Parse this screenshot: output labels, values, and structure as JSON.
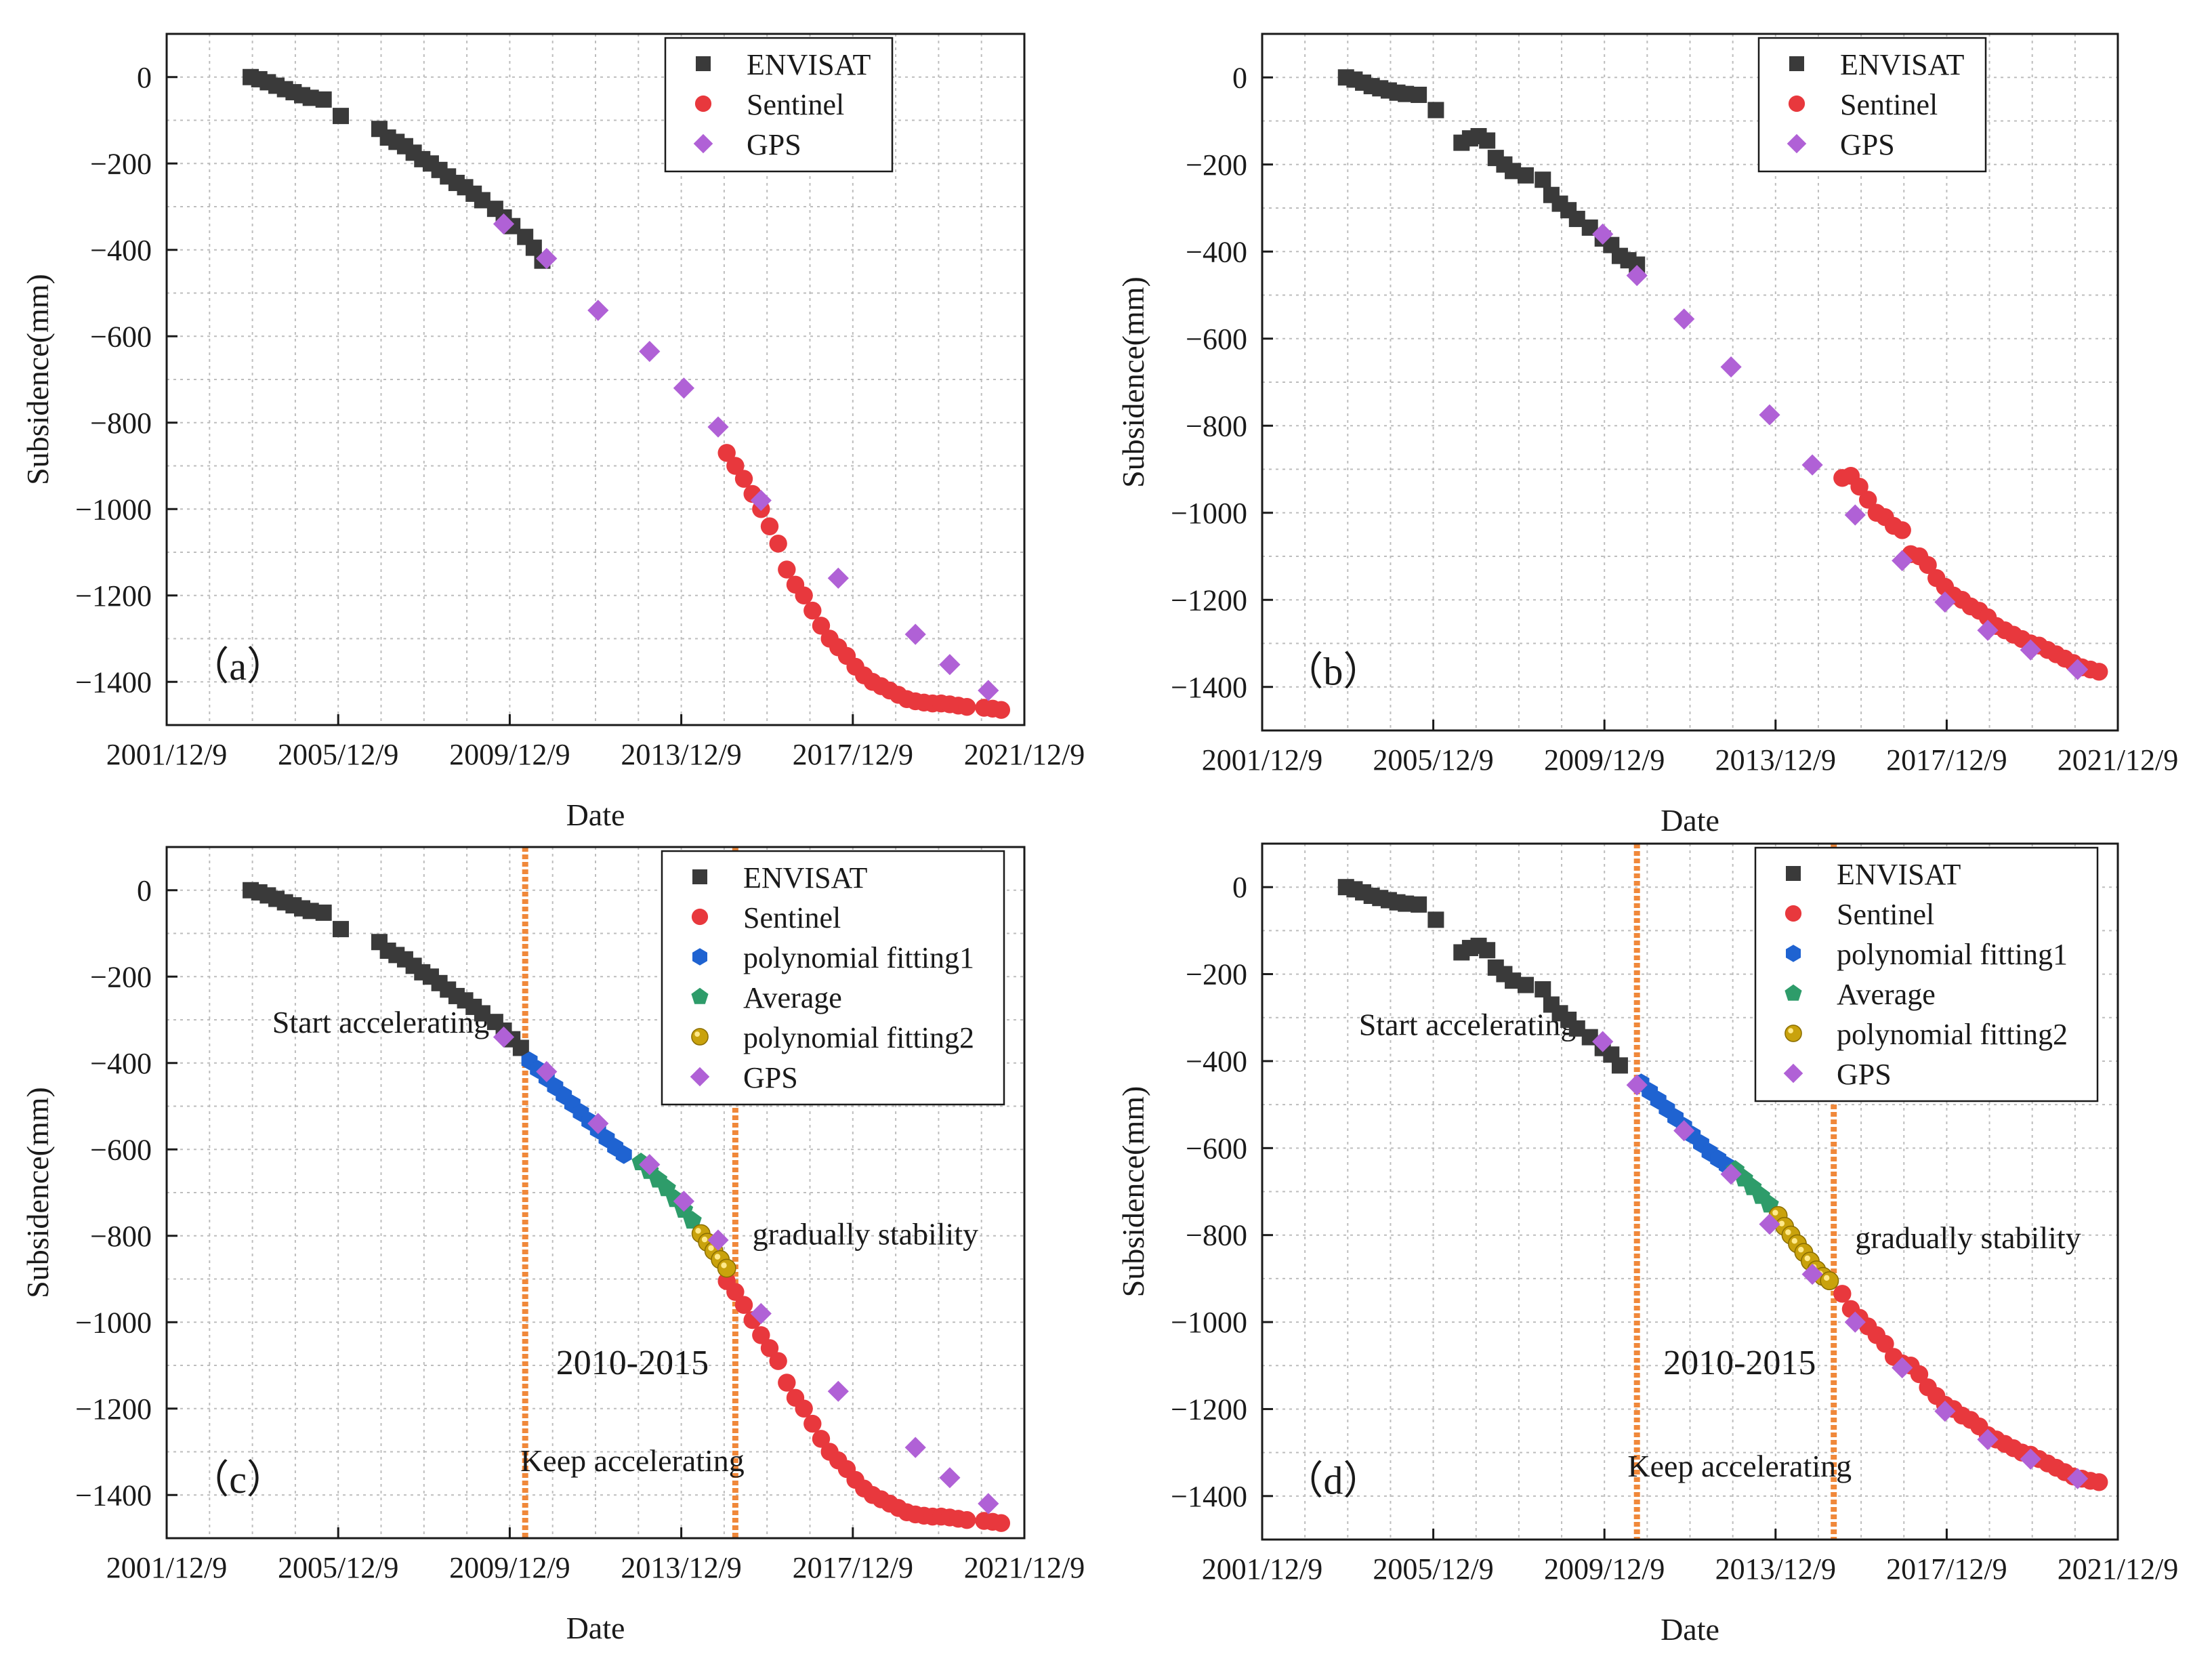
{
  "chart_data": [
    {
      "type": "scatter",
      "panel_label": "（a）",
      "xlabel": "Date",
      "ylabel": "Subsidence(mm)",
      "x_ticks": [
        "2001/12/9",
        "2005/12/9",
        "2009/12/9",
        "2013/12/9",
        "2017/12/9",
        "2021/12/9"
      ],
      "y_ticks": [
        "0",
        "−200",
        "−400",
        "−600",
        "−800",
        "−1000",
        "−1200",
        "−1400"
      ],
      "xlim": [
        2001.94,
        2021.94
      ],
      "ylim": [
        -1500,
        100
      ],
      "legend_position": "top-right",
      "series": [
        {
          "name": "ENVISAT",
          "marker": "square",
          "color": "#3a3a3a",
          "x": [
            2003.9,
            2004.1,
            2004.3,
            2004.5,
            2004.7,
            2004.9,
            2005.1,
            2005.3,
            2005.6,
            2006.0,
            2006.9,
            2007.1,
            2007.3,
            2007.5,
            2007.7,
            2007.9,
            2008.1,
            2008.3,
            2008.5,
            2008.7,
            2008.9,
            2009.1,
            2009.3,
            2009.6,
            2009.8,
            2010.0,
            2010.3,
            2010.5,
            2010.7
          ],
          "y": [
            0,
            -5,
            -12,
            -20,
            -28,
            -35,
            -42,
            -48,
            -52,
            -90,
            -120,
            -140,
            -150,
            -160,
            -175,
            -190,
            -200,
            -215,
            -230,
            -245,
            -255,
            -270,
            -285,
            -305,
            -325,
            -345,
            -370,
            -395,
            -425
          ]
        },
        {
          "name": "Sentinel",
          "marker": "circle",
          "color": "#e8383d",
          "x": [
            2015.0,
            2015.2,
            2015.4,
            2015.6,
            2015.8,
            2016.0,
            2016.2,
            2016.4,
            2016.6,
            2016.8,
            2017.0,
            2017.2,
            2017.4,
            2017.6,
            2017.8,
            2018.0,
            2018.2,
            2018.4,
            2018.6,
            2018.8,
            2019.0,
            2019.2,
            2019.4,
            2019.6,
            2019.8,
            2020.0,
            2020.2,
            2020.4,
            2020.6,
            2021.0,
            2021.2,
            2021.4
          ],
          "y": [
            -870,
            -900,
            -930,
            -965,
            -1000,
            -1040,
            -1080,
            -1140,
            -1175,
            -1200,
            -1235,
            -1270,
            -1300,
            -1320,
            -1340,
            -1365,
            -1385,
            -1400,
            -1410,
            -1420,
            -1430,
            -1440,
            -1445,
            -1448,
            -1450,
            -1450,
            -1452,
            -1455,
            -1458,
            -1460,
            -1462,
            -1465
          ]
        },
        {
          "name": "GPS",
          "marker": "diamond",
          "color": "#b061d6",
          "x": [
            2009.8,
            2010.8,
            2012.0,
            2013.2,
            2014.0,
            2014.8,
            2015.8,
            2017.6,
            2019.4,
            2020.2,
            2021.1
          ],
          "y": [
            -340,
            -420,
            -540,
            -635,
            -720,
            -810,
            -980,
            -1160,
            -1290,
            -1360,
            -1420
          ]
        }
      ],
      "annotations": []
    },
    {
      "type": "scatter",
      "panel_label": "（b）",
      "xlabel": "Date",
      "ylabel": "Subsidence(mm)",
      "x_ticks": [
        "2001/12/9",
        "2005/12/9",
        "2009/12/9",
        "2013/12/9",
        "2017/12/9",
        "2021/12/9"
      ],
      "y_ticks": [
        "0",
        "−200",
        "−400",
        "−600",
        "−800",
        "−1000",
        "−1200",
        "−1400"
      ],
      "xlim": [
        2001.94,
        2021.94
      ],
      "ylim": [
        -1500,
        100
      ],
      "legend_position": "top-right",
      "series": [
        {
          "name": "ENVISAT",
          "marker": "square",
          "color": "#3a3a3a",
          "x": [
            2003.9,
            2004.1,
            2004.3,
            2004.5,
            2004.7,
            2004.9,
            2005.1,
            2005.3,
            2005.6,
            2006.0,
            2006.6,
            2006.8,
            2007.0,
            2007.2,
            2007.4,
            2007.6,
            2007.8,
            2008.1,
            2008.5,
            2008.7,
            2008.9,
            2009.1,
            2009.3,
            2009.6,
            2009.9,
            2010.1,
            2010.3,
            2010.5,
            2010.7
          ],
          "y": [
            0,
            -5,
            -12,
            -20,
            -25,
            -30,
            -35,
            -38,
            -40,
            -75,
            -150,
            -140,
            -135,
            -145,
            -185,
            -200,
            -215,
            -225,
            -235,
            -270,
            -290,
            -305,
            -325,
            -345,
            -370,
            -385,
            -410,
            -420,
            -430
          ]
        },
        {
          "name": "Sentinel",
          "marker": "circle",
          "color": "#e8383d",
          "x": [
            2015.5,
            2015.7,
            2015.9,
            2016.1,
            2016.3,
            2016.5,
            2016.7,
            2016.9,
            2017.1,
            2017.3,
            2017.5,
            2017.7,
            2017.9,
            2018.1,
            2018.3,
            2018.5,
            2018.7,
            2018.9,
            2019.1,
            2019.3,
            2019.5,
            2019.7,
            2019.9,
            2020.1,
            2020.3,
            2020.5,
            2020.7,
            2020.9,
            2021.1,
            2021.3,
            2021.5
          ],
          "y": [
            -920,
            -915,
            -940,
            -970,
            -1000,
            -1010,
            -1030,
            -1040,
            -1095,
            -1100,
            -1120,
            -1150,
            -1170,
            -1190,
            -1200,
            -1215,
            -1225,
            -1240,
            -1260,
            -1270,
            -1280,
            -1290,
            -1300,
            -1305,
            -1315,
            -1325,
            -1335,
            -1345,
            -1355,
            -1360,
            -1365
          ]
        },
        {
          "name": "GPS",
          "marker": "diamond",
          "color": "#b061d6",
          "x": [
            2009.9,
            2010.7,
            2011.8,
            2012.9,
            2013.8,
            2014.8,
            2015.8,
            2016.9,
            2017.9,
            2018.9,
            2019.9,
            2021.0
          ],
          "y": [
            -360,
            -455,
            -555,
            -665,
            -775,
            -890,
            -1005,
            -1110,
            -1205,
            -1270,
            -1315,
            -1360
          ]
        }
      ],
      "annotations": []
    },
    {
      "type": "scatter",
      "panel_label": "（c）",
      "xlabel": "Date",
      "ylabel": "Subsidence(mm)",
      "x_ticks": [
        "2001/12/9",
        "2005/12/9",
        "2009/12/9",
        "2013/12/9",
        "2017/12/9",
        "2021/12/9"
      ],
      "y_ticks": [
        "0",
        "−200",
        "−400",
        "−600",
        "−800",
        "−1000",
        "−1200",
        "−1400"
      ],
      "xlim": [
        2001.94,
        2021.94
      ],
      "ylim": [
        -1500,
        100
      ],
      "legend_position": "top-right",
      "series": [
        {
          "name": "ENVISAT",
          "marker": "square",
          "color": "#3a3a3a",
          "x": [
            2003.9,
            2004.1,
            2004.3,
            2004.5,
            2004.7,
            2004.9,
            2005.1,
            2005.3,
            2005.6,
            2006.0,
            2006.9,
            2007.1,
            2007.3,
            2007.5,
            2007.7,
            2007.9,
            2008.1,
            2008.3,
            2008.5,
            2008.7,
            2008.9,
            2009.1,
            2009.3,
            2009.6,
            2009.8,
            2010.0,
            2010.2
          ],
          "y": [
            0,
            -5,
            -12,
            -20,
            -28,
            -35,
            -42,
            -48,
            -52,
            -90,
            -120,
            -140,
            -150,
            -160,
            -175,
            -190,
            -200,
            -215,
            -230,
            -245,
            -255,
            -270,
            -285,
            -305,
            -325,
            -345,
            -365
          ]
        },
        {
          "name": "Sentinel",
          "marker": "circle",
          "color": "#e8383d",
          "x": [
            2015.0,
            2015.2,
            2015.4,
            2015.6,
            2015.8,
            2016.0,
            2016.2,
            2016.4,
            2016.6,
            2016.8,
            2017.0,
            2017.2,
            2017.4,
            2017.6,
            2017.8,
            2018.0,
            2018.2,
            2018.4,
            2018.6,
            2018.8,
            2019.0,
            2019.2,
            2019.4,
            2019.6,
            2019.8,
            2020.0,
            2020.2,
            2020.4,
            2020.6,
            2021.0,
            2021.2,
            2021.4
          ],
          "y": [
            -905,
            -930,
            -960,
            -995,
            -1030,
            -1060,
            -1090,
            -1140,
            -1175,
            -1200,
            -1235,
            -1270,
            -1300,
            -1320,
            -1340,
            -1365,
            -1385,
            -1400,
            -1410,
            -1420,
            -1430,
            -1440,
            -1445,
            -1448,
            -1450,
            -1450,
            -1452,
            -1455,
            -1458,
            -1460,
            -1462,
            -1465
          ]
        },
        {
          "name": "polynomial fitting1",
          "marker": "hexagon",
          "color": "#1f63d1",
          "x": [
            2010.4,
            2010.6,
            2010.8,
            2011.0,
            2011.2,
            2011.4,
            2011.6,
            2011.8,
            2012.0,
            2012.2,
            2012.4,
            2012.6
          ],
          "y": [
            -395,
            -415,
            -435,
            -455,
            -475,
            -495,
            -515,
            -535,
            -555,
            -575,
            -595,
            -612
          ]
        },
        {
          "name": "Average",
          "marker": "pentagon",
          "color": "#2e9c6a",
          "x": [
            2013.0,
            2013.2,
            2013.4,
            2013.6,
            2013.8,
            2014.0,
            2014.2
          ],
          "y": [
            -630,
            -650,
            -670,
            -690,
            -715,
            -740,
            -765
          ]
        },
        {
          "name": "polynomial fitting2",
          "marker": "sphere",
          "color": "#c9a20c",
          "x": [
            2014.4,
            2014.55,
            2014.7,
            2014.85,
            2015.0
          ],
          "y": [
            -795,
            -815,
            -835,
            -855,
            -875
          ]
        },
        {
          "name": "GPS",
          "marker": "diamond",
          "color": "#b061d6",
          "x": [
            2009.8,
            2010.8,
            2012.0,
            2013.2,
            2014.0,
            2014.8,
            2015.8,
            2017.6,
            2019.4,
            2020.2,
            2021.1
          ],
          "y": [
            -340,
            -420,
            -540,
            -635,
            -720,
            -810,
            -980,
            -1160,
            -1290,
            -1360,
            -1420
          ]
        }
      ],
      "vlines": [
        2010.3,
        2015.2
      ],
      "annotations": [
        {
          "text": "Start accelerating",
          "x": 2004.4,
          "y": -330
        },
        {
          "text": "gradually stability",
          "x": 2015.6,
          "y": -820
        },
        {
          "text": "2010-2015",
          "x": 2012.8,
          "y": -1120
        },
        {
          "text": "Keep accelerating",
          "x": 2012.8,
          "y": -1345
        }
      ]
    },
    {
      "type": "scatter",
      "panel_label": "（d）",
      "xlabel": "Date",
      "ylabel": "Subsidence(mm)",
      "x_ticks": [
        "2001/12/9",
        "2005/12/9",
        "2009/12/9",
        "2013/12/9",
        "2017/12/9",
        "2021/12/9"
      ],
      "y_ticks": [
        "0",
        "−200",
        "−400",
        "−600",
        "−800",
        "−1000",
        "−1200",
        "−1400"
      ],
      "xlim": [
        2001.94,
        2021.94
      ],
      "ylim": [
        -1500,
        100
      ],
      "legend_position": "top-right",
      "series": [
        {
          "name": "ENVISAT",
          "marker": "square",
          "color": "#3a3a3a",
          "x": [
            2003.9,
            2004.1,
            2004.3,
            2004.5,
            2004.7,
            2004.9,
            2005.1,
            2005.3,
            2005.6,
            2006.0,
            2006.6,
            2006.8,
            2007.0,
            2007.2,
            2007.4,
            2007.6,
            2007.8,
            2008.1,
            2008.5,
            2008.7,
            2008.9,
            2009.1,
            2009.3,
            2009.6,
            2009.9,
            2010.1,
            2010.3
          ],
          "y": [
            0,
            -5,
            -12,
            -20,
            -25,
            -30,
            -35,
            -38,
            -40,
            -75,
            -150,
            -140,
            -135,
            -145,
            -185,
            -200,
            -215,
            -225,
            -235,
            -270,
            -290,
            -305,
            -325,
            -345,
            -370,
            -385,
            -410
          ]
        },
        {
          "name": "Sentinel",
          "marker": "circle",
          "color": "#e8383d",
          "x": [
            2015.5,
            2015.7,
            2015.9,
            2016.1,
            2016.3,
            2016.5,
            2016.7,
            2016.9,
            2017.1,
            2017.3,
            2017.5,
            2017.7,
            2017.9,
            2018.1,
            2018.3,
            2018.5,
            2018.7,
            2018.9,
            2019.1,
            2019.3,
            2019.5,
            2019.7,
            2019.9,
            2020.1,
            2020.3,
            2020.5,
            2020.7,
            2020.9,
            2021.1,
            2021.3,
            2021.5
          ],
          "y": [
            -935,
            -970,
            -990,
            -1010,
            -1030,
            -1050,
            -1080,
            -1095,
            -1100,
            -1120,
            -1150,
            -1170,
            -1190,
            -1200,
            -1215,
            -1225,
            -1240,
            -1260,
            -1270,
            -1280,
            -1290,
            -1300,
            -1305,
            -1315,
            -1325,
            -1335,
            -1345,
            -1355,
            -1360,
            -1365,
            -1368
          ]
        },
        {
          "name": "polynomial fitting1",
          "marker": "hexagon",
          "color": "#1f63d1",
          "x": [
            2010.8,
            2011.0,
            2011.2,
            2011.4,
            2011.6,
            2011.8,
            2012.0,
            2012.2,
            2012.4,
            2012.6,
            2012.8
          ],
          "y": [
            -450,
            -470,
            -490,
            -510,
            -530,
            -550,
            -570,
            -590,
            -610,
            -625,
            -640
          ]
        },
        {
          "name": "Average",
          "marker": "pentagon",
          "color": "#2e9c6a",
          "x": [
            2013.0,
            2013.2,
            2013.4,
            2013.6,
            2013.8
          ],
          "y": [
            -650,
            -670,
            -690,
            -710,
            -730
          ]
        },
        {
          "name": "polynomial fitting2",
          "marker": "sphere",
          "color": "#c9a20c",
          "x": [
            2014.0,
            2014.15,
            2014.3,
            2014.45,
            2014.6,
            2014.75,
            2014.9,
            2015.05,
            2015.2
          ],
          "y": [
            -755,
            -780,
            -800,
            -820,
            -840,
            -860,
            -880,
            -895,
            -905
          ]
        },
        {
          "name": "GPS",
          "marker": "diamond",
          "color": "#b061d6",
          "x": [
            2009.9,
            2010.7,
            2011.8,
            2012.9,
            2013.8,
            2014.8,
            2015.8,
            2016.9,
            2017.9,
            2018.9,
            2019.9,
            2021.0
          ],
          "y": [
            -355,
            -455,
            -560,
            -660,
            -775,
            -890,
            -1000,
            -1105,
            -1205,
            -1270,
            -1315,
            -1360
          ]
        }
      ],
      "vlines": [
        2010.7,
        2015.3
      ],
      "annotations": [
        {
          "text": "Start accelerating",
          "x": 2004.2,
          "y": -340
        },
        {
          "text": "gradually stability",
          "x": 2015.8,
          "y": -830
        },
        {
          "text": "2010-2015",
          "x": 2013.1,
          "y": -1120
        },
        {
          "text": "Keep accelerating",
          "x": 2013.1,
          "y": -1355
        }
      ]
    }
  ]
}
